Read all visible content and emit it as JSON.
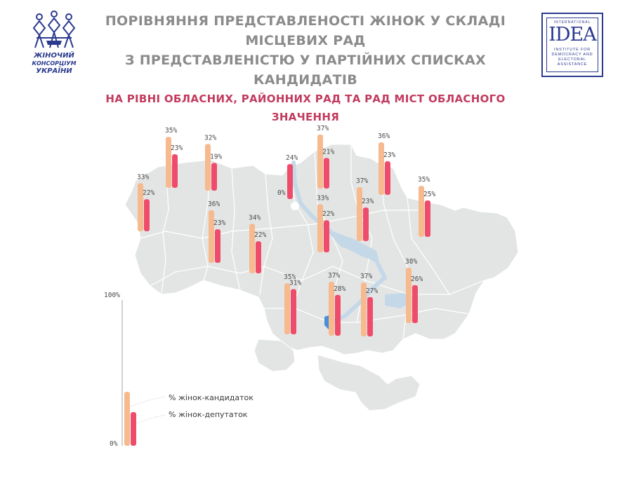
{
  "header": {
    "title_line1": "ПОРІВНЯННЯ ПРЕДСТАВЛЕНОСТІ ЖІНОК У СКЛАДІ МІСЦЕВИХ РАД",
    "title_line2": "З ПРЕДСТАВЛЕНІСТЮ У ПАРТІЙНИХ СПИСКАХ КАНДИДАТІВ",
    "title_line3": "НА РІВНІ ОБЛАСНИХ, РАЙОННИХ РАД ТА РАД МІСТ ОБЛАСНОГО ЗНАЧЕННЯ"
  },
  "logos": {
    "left_text_1": "ЖІНОЧИЙ",
    "left_text_2": "КОНСОРЦІУМ",
    "left_text_3": "УКРАЇНИ",
    "right_top": "INTERNATIONAL",
    "right_main": "IDEA",
    "right_sub_1": "INSTITUTE FOR",
    "right_sub_2": "DEMOCRACY AND",
    "right_sub_3": "ELECTORAL",
    "right_sub_4": "ASSISTANCE"
  },
  "colors": {
    "candidates": "#f7b98e",
    "deputies": "#ef4b6a",
    "map_fill": "#e3e5e5",
    "map_border": "#ffffff",
    "river": "#c5d8e8",
    "title_gray": "#8b8b8b",
    "title_red": "#c23b5e"
  },
  "chart_data": {
    "type": "bar",
    "series": [
      {
        "name": "% жінок-кандидаток"
      },
      {
        "name": "% жінок-депутаток"
      }
    ],
    "scale": {
      "max_label": "100%",
      "min_label": "0%",
      "ylim": [
        0,
        100
      ]
    },
    "regions": [
      {
        "candidates": 33,
        "deputies": 22,
        "cand_label": "33%",
        "dep_label": "22%"
      },
      {
        "candidates": 35,
        "deputies": 23,
        "cand_label": "35%",
        "dep_label": "23%"
      },
      {
        "candidates": 32,
        "deputies": 19,
        "cand_label": "32%",
        "dep_label": "19%"
      },
      {
        "candidates": 36,
        "deputies": 23,
        "cand_label": "36%",
        "dep_label": "23%"
      },
      {
        "candidates": 34,
        "deputies": 22,
        "cand_label": "34%",
        "dep_label": "22%"
      },
      {
        "candidates": 0,
        "deputies": 24,
        "cand_label": "0%",
        "dep_label": "24%"
      },
      {
        "candidates": 37,
        "deputies": 21,
        "cand_label": "37%",
        "dep_label": "21%"
      },
      {
        "candidates": 33,
        "deputies": 22,
        "cand_label": "33%",
        "dep_label": "22%"
      },
      {
        "candidates": 36,
        "deputies": 23,
        "cand_label": "36%",
        "dep_label": "23%"
      },
      {
        "candidates": 37,
        "deputies": 23,
        "cand_label": "37%",
        "dep_label": "23%"
      },
      {
        "candidates": 35,
        "deputies": 25,
        "cand_label": "35%",
        "dep_label": "25%"
      },
      {
        "candidates": 35,
        "deputies": 31,
        "cand_label": "35%",
        "dep_label": "31%"
      },
      {
        "candidates": 37,
        "deputies": 28,
        "cand_label": "37%",
        "dep_label": "28%"
      },
      {
        "candidates": 37,
        "deputies": 27,
        "cand_label": "37%",
        "dep_label": "27%"
      },
      {
        "candidates": 38,
        "deputies": 26,
        "cand_label": "38%",
        "dep_label": "26%"
      }
    ]
  }
}
